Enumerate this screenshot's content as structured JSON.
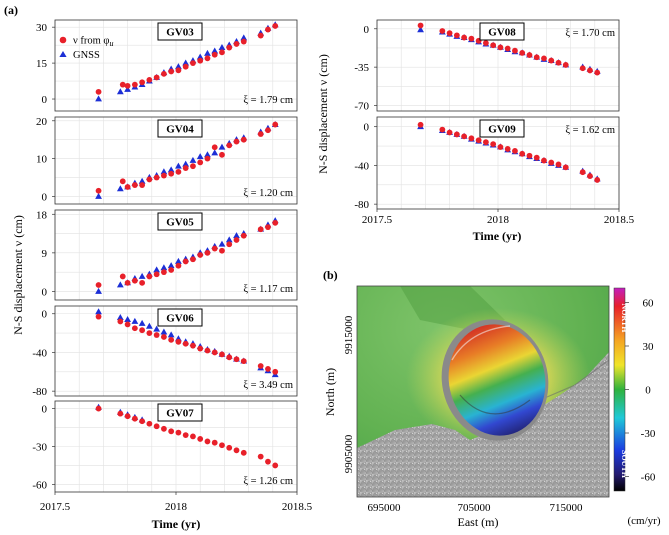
{
  "panel_labels": {
    "a": "(a)",
    "b": "(b)"
  },
  "legend": {
    "series1": "ν from φ",
    "series1_sub": "u",
    "series2": "GNSS"
  },
  "a_left_ylabel": "N-S displacement ν (cm)",
  "a_right_ylabel": "N-S displacement ν (cm)",
  "a_left_xlabel": "Time (yr)",
  "a_right_xlabel": "Time (yr)",
  "a_left_xticks": [
    "2017.5",
    "2018",
    "2018.5"
  ],
  "a_right_xticks": [
    "2017.5",
    "2018",
    "2018.5"
  ],
  "colors": {
    "insar": "#e8202a",
    "gnss": "#1c2fd6",
    "grid": "#e2e2e2"
  },
  "chart_data": [
    {
      "type": "scatter",
      "title": "GV03",
      "annotation": "ξ = 1.79 cm",
      "xlim": [
        2017.5,
        2018.5
      ],
      "ylim": [
        -5,
        33
      ],
      "yticks": [
        0,
        15,
        30
      ],
      "series": [
        {
          "x": [
            2017.68,
            2017.78,
            2017.8,
            2017.83,
            2017.86,
            2017.89,
            2017.92,
            2017.95,
            2017.98,
            2018.01,
            2018.04,
            2018.07,
            2018.1,
            2018.13,
            2018.16,
            2018.19,
            2018.22,
            2018.25,
            2018.28,
            2018.35,
            2018.38,
            2018.41
          ],
          "y": [
            3,
            6,
            5.5,
            6,
            7,
            8,
            9,
            10.5,
            11.5,
            12,
            13.5,
            15,
            16,
            17,
            18.5,
            19.5,
            21.5,
            23,
            24,
            26.5,
            29,
            30.5
          ]
        },
        {
          "x": [
            2017.68,
            2017.77,
            2017.8,
            2017.83,
            2017.86,
            2017.89,
            2017.92,
            2017.95,
            2017.98,
            2018.01,
            2018.04,
            2018.07,
            2018.1,
            2018.13,
            2018.16,
            2018.19,
            2018.22,
            2018.25,
            2018.28,
            2018.35,
            2018.38,
            2018.41
          ],
          "y": [
            0,
            3,
            4,
            5,
            6,
            7.5,
            9,
            11,
            12.5,
            13.5,
            15,
            16,
            17.5,
            19,
            20,
            21.5,
            22.5,
            24,
            25.5,
            27.5,
            29.5,
            31
          ]
        }
      ]
    },
    {
      "type": "scatter",
      "title": "GV04",
      "annotation": "ξ = 1.20 cm",
      "xlim": [
        2017.5,
        2018.5
      ],
      "ylim": [
        -2,
        21
      ],
      "yticks": [
        0,
        10,
        20
      ],
      "series": [
        {
          "x": [
            2017.68,
            2017.78,
            2017.8,
            2017.83,
            2017.86,
            2017.89,
            2017.92,
            2017.95,
            2017.98,
            2018.01,
            2018.04,
            2018.07,
            2018.1,
            2018.13,
            2018.16,
            2018.19,
            2018.22,
            2018.25,
            2018.28,
            2018.35,
            2018.38,
            2018.41
          ],
          "y": [
            1.5,
            4,
            2.5,
            3,
            3,
            4.5,
            5,
            5.5,
            6,
            6.5,
            7.5,
            8,
            9,
            10,
            13,
            11,
            13.5,
            14.5,
            15,
            16.5,
            17.5,
            19
          ]
        },
        {
          "x": [
            2017.68,
            2017.77,
            2017.8,
            2017.83,
            2017.86,
            2017.89,
            2017.92,
            2017.95,
            2017.98,
            2018.01,
            2018.04,
            2018.07,
            2018.1,
            2018.13,
            2018.16,
            2018.19,
            2018.22,
            2018.25,
            2018.28,
            2018.35,
            2018.38,
            2018.41
          ],
          "y": [
            0,
            2,
            2.5,
            3.5,
            4,
            5,
            5.5,
            6.5,
            7,
            8,
            8.5,
            9.5,
            10.5,
            11,
            11.5,
            13,
            14,
            15,
            15.5,
            17,
            18,
            19
          ]
        }
      ]
    },
    {
      "type": "scatter",
      "title": "GV05",
      "annotation": "ξ = 1.17 cm",
      "xlim": [
        2017.5,
        2018.5
      ],
      "ylim": [
        -2,
        19
      ],
      "yticks": [
        0,
        9,
        18
      ],
      "series": [
        {
          "x": [
            2017.68,
            2017.78,
            2017.8,
            2017.83,
            2017.86,
            2017.89,
            2017.92,
            2017.95,
            2017.98,
            2018.01,
            2018.04,
            2018.07,
            2018.1,
            2018.13,
            2018.16,
            2018.19,
            2018.22,
            2018.25,
            2018.28,
            2018.35,
            2018.38,
            2018.41
          ],
          "y": [
            1.5,
            3.5,
            2,
            2.5,
            2,
            3.5,
            4,
            4.5,
            5,
            6,
            7,
            7.5,
            8.5,
            9,
            10,
            9.5,
            11,
            12,
            13,
            14.5,
            15,
            16
          ]
        },
        {
          "x": [
            2017.68,
            2017.77,
            2017.8,
            2017.83,
            2017.86,
            2017.89,
            2017.92,
            2017.95,
            2017.98,
            2018.01,
            2018.04,
            2018.07,
            2018.1,
            2018.13,
            2018.16,
            2018.19,
            2018.22,
            2018.25,
            2018.28,
            2018.35,
            2018.38,
            2018.41
          ],
          "y": [
            0,
            1.5,
            2,
            3,
            3.5,
            4,
            5,
            5.5,
            6,
            7,
            7.5,
            8,
            9,
            9.5,
            10.5,
            11,
            12,
            13,
            13.5,
            14.5,
            15.5,
            16.5
          ]
        }
      ]
    },
    {
      "type": "scatter",
      "title": "GV06",
      "annotation": "ξ = 3.49 cm",
      "xlim": [
        2017.5,
        2018.5
      ],
      "ylim": [
        -85,
        8
      ],
      "yticks": [
        0,
        -40,
        -80
      ],
      "yticklabels": [
        "0",
        "-40",
        "-80"
      ],
      "series": [
        {
          "x": [
            2017.68,
            2017.77,
            2017.8,
            2017.83,
            2017.86,
            2017.89,
            2017.92,
            2017.95,
            2017.98,
            2018.01,
            2018.04,
            2018.07,
            2018.1,
            2018.13,
            2018.16,
            2018.19,
            2018.22,
            2018.25,
            2018.28,
            2018.35,
            2018.38,
            2018.41
          ],
          "y": [
            -3,
            -8,
            -11,
            -15,
            -17,
            -20,
            -22,
            -24,
            -27,
            -29,
            -31,
            -33,
            -36,
            -38,
            -40,
            -42,
            -45,
            -47,
            -49,
            -54,
            -57,
            -60
          ]
        },
        {
          "x": [
            2017.68,
            2017.77,
            2017.8,
            2017.83,
            2017.86,
            2017.89,
            2017.92,
            2017.95,
            2017.98,
            2018.01,
            2018.04,
            2018.07,
            2018.1,
            2018.13,
            2018.16,
            2018.19,
            2018.22,
            2018.25,
            2018.28,
            2018.35,
            2018.38,
            2018.41
          ],
          "y": [
            2,
            -4,
            -6,
            -8,
            -10,
            -13,
            -16,
            -19,
            -22,
            -26,
            -29,
            -31,
            -34,
            -37,
            -39,
            -42,
            -44,
            -47,
            -49,
            -56,
            -59,
            -63
          ]
        }
      ]
    },
    {
      "type": "scatter",
      "title": "GV07",
      "annotation": "ξ = 1.26 cm",
      "xlim": [
        2017.5,
        2018.5
      ],
      "ylim": [
        -66,
        6
      ],
      "yticks": [
        0,
        -30,
        -60
      ],
      "yticklabels": [
        "0",
        "-30",
        "-60"
      ],
      "series": [
        {
          "x": [
            2017.68,
            2017.77,
            2017.8,
            2017.83,
            2017.86,
            2017.89,
            2017.92,
            2017.95,
            2017.98,
            2018.01,
            2018.04,
            2018.07,
            2018.1,
            2018.13,
            2018.16,
            2018.19,
            2018.22,
            2018.25,
            2018.28,
            2018.35,
            2018.38,
            2018.41
          ],
          "y": [
            0,
            -4,
            -6,
            -8,
            -10,
            -12,
            -14,
            -16,
            -18,
            -19,
            -21,
            -22,
            -24,
            -26,
            -27,
            -29,
            -31,
            -33,
            -35,
            -38,
            -42,
            -45
          ]
        },
        {
          "x": [
            2017.68,
            2017.77,
            2017.8,
            2017.83,
            2017.86
          ],
          "y": [
            1,
            -3,
            -5,
            -7,
            -9
          ]
        }
      ]
    },
    {
      "type": "scatter",
      "title": "GV08",
      "annotation": "ξ = 1.70 cm",
      "xlim": [
        2017.5,
        2018.5
      ],
      "ylim": [
        -75,
        8
      ],
      "yticks": [
        0,
        -35,
        -70
      ],
      "yticklabels": [
        "0",
        "-35",
        "-70"
      ],
      "series": [
        {
          "x": [
            2017.68,
            2017.77,
            2017.8,
            2017.83,
            2017.86,
            2017.89,
            2017.92,
            2017.95,
            2017.98,
            2018.01,
            2018.04,
            2018.07,
            2018.1,
            2018.13,
            2018.16,
            2018.19,
            2018.22,
            2018.25,
            2018.28,
            2018.35,
            2018.38,
            2018.41
          ],
          "y": [
            3,
            -2,
            -4,
            -6,
            -8,
            -9,
            -11,
            -13,
            -15,
            -17,
            -18,
            -20,
            -22,
            -24,
            -26,
            -27,
            -29,
            -31,
            -33,
            -36,
            -38,
            -40
          ]
        },
        {
          "x": [
            2017.68,
            2017.77,
            2017.8,
            2017.83,
            2017.86,
            2017.89,
            2017.92,
            2017.95,
            2017.98,
            2018.01,
            2018.04,
            2018.07,
            2018.1,
            2018.13,
            2018.16,
            2018.19,
            2018.22,
            2018.25,
            2018.28,
            2018.35,
            2018.38,
            2018.41
          ],
          "y": [
            -1,
            -3,
            -5,
            -7,
            -8,
            -10,
            -12,
            -14,
            -15,
            -17,
            -19,
            -21,
            -22,
            -24,
            -26,
            -28,
            -29,
            -31,
            -33,
            -35,
            -37,
            -39
          ]
        }
      ]
    },
    {
      "type": "scatter",
      "title": "GV09",
      "annotation": "ξ = 1.62 cm",
      "xlim": [
        2017.5,
        2018.5
      ],
      "ylim": [
        -85,
        10
      ],
      "yticks": [
        0,
        -40,
        -80
      ],
      "yticklabels": [
        "0",
        "-40",
        "-80"
      ],
      "series": [
        {
          "x": [
            2017.68,
            2017.77,
            2017.8,
            2017.83,
            2017.86,
            2017.89,
            2017.92,
            2017.95,
            2017.98,
            2018.01,
            2018.04,
            2018.07,
            2018.1,
            2018.13,
            2018.16,
            2018.19,
            2018.22,
            2018.25,
            2018.28,
            2018.35,
            2018.38,
            2018.41
          ],
          "y": [
            2,
            -3,
            -6,
            -8,
            -10,
            -12,
            -14,
            -16,
            -18,
            -21,
            -23,
            -25,
            -28,
            -30,
            -32,
            -35,
            -37,
            -39,
            -42,
            -47,
            -51,
            -55
          ]
        },
        {
          "x": [
            2017.68,
            2017.77,
            2017.8,
            2017.83,
            2017.86,
            2017.89,
            2017.92,
            2017.95,
            2017.98,
            2018.01,
            2018.04,
            2018.07,
            2018.1,
            2018.13,
            2018.16,
            2018.19,
            2018.22,
            2018.25,
            2018.28,
            2018.35,
            2018.38,
            2018.41
          ],
          "y": [
            0,
            -4,
            -6,
            -8,
            -10,
            -13,
            -15,
            -17,
            -19,
            -21,
            -24,
            -26,
            -28,
            -31,
            -33,
            -35,
            -38,
            -40,
            -42,
            -46,
            -50,
            -54
          ]
        }
      ]
    },
    {
      "type": "heatmap",
      "xlabel": "East (m)",
      "ylabel": "North (m)",
      "xticks": [
        "695000",
        "705000",
        "715000"
      ],
      "yticks": [
        "9915000",
        "9905000"
      ],
      "colorbar": {
        "ticks": [
          "60",
          "30",
          "0",
          "-30",
          "-60"
        ],
        "unit": "(cm/yr)",
        "top_label": "NORTH",
        "bottom_label": "SOUTH",
        "range": [
          -70,
          70
        ]
      }
    }
  ]
}
